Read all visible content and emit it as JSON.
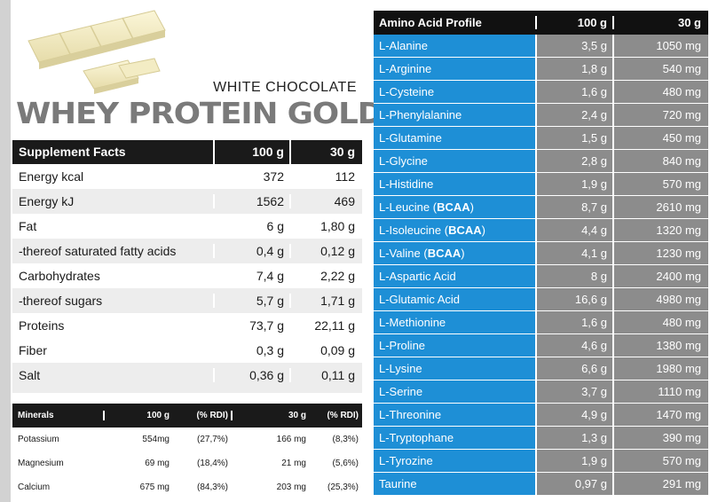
{
  "product": {
    "subtitle": "WHITE CHOCOLATE",
    "title": "WHEY PROTEIN GOLD",
    "image": "white-chocolate-bar"
  },
  "supplement_facts": {
    "headers": [
      "Supplement Facts",
      "100 g",
      "30 g"
    ],
    "rows": [
      {
        "name": "Energy  kcal",
        "per100": "372",
        "per30": "112"
      },
      {
        "name": "Energy  kJ",
        "per100": "1562",
        "per30": "469"
      },
      {
        "name": "Fat",
        "per100": "6 g",
        "per30": "1,80 g"
      },
      {
        "name": "-thereof saturated fatty acids",
        "per100": "0,4 g",
        "per30": "0,12 g"
      },
      {
        "name": "Carbohydrates",
        "per100": "7,4 g",
        "per30": "2,22 g"
      },
      {
        "name": "-thereof sugars",
        "per100": "5,7 g",
        "per30": "1,71 g"
      },
      {
        "name": "Proteins",
        "per100": "73,7 g",
        "per30": "22,11 g"
      },
      {
        "name": "Fiber",
        "per100": "0,3 g",
        "per30": "0,09 g"
      },
      {
        "name": "Salt",
        "per100": "0,36 g",
        "per30": "0,11 g"
      }
    ]
  },
  "minerals": {
    "headers": [
      "Minerals",
      "100 g",
      "(% RDI)",
      "30 g",
      "(% RDI)"
    ],
    "rows": [
      {
        "name": "Potassium",
        "per100": "554mg",
        "rdi100": "(27,7%)",
        "per30": "166 mg",
        "rdi30": "(8,3%)"
      },
      {
        "name": "Magnesium",
        "per100": "69 mg",
        "rdi100": "(18,4%)",
        "per30": "21 mg",
        "rdi30": "(5,6%)"
      },
      {
        "name": "Calcium",
        "per100": "675 mg",
        "rdi100": "(84,3%)",
        "per30": "203 mg",
        "rdi30": "(25,3%)"
      }
    ]
  },
  "amino_acids": {
    "headers": [
      "Amino Acid Profile",
      "100 g",
      "30 g"
    ],
    "bcaa_label": "BCAA",
    "rows": [
      {
        "name": "L-Alanine",
        "bcaa": false,
        "per100": "3,5 g",
        "per30": "1050 mg"
      },
      {
        "name": "L-Arginine",
        "bcaa": false,
        "per100": "1,8 g",
        "per30": "540 mg"
      },
      {
        "name": "L-Cysteine",
        "bcaa": false,
        "per100": "1,6 g",
        "per30": "480 mg"
      },
      {
        "name": "L-Phenylalanine",
        "bcaa": false,
        "per100": "2,4 g",
        "per30": "720 mg"
      },
      {
        "name": "L-Glutamine",
        "bcaa": false,
        "per100": "1,5 g",
        "per30": "450 mg"
      },
      {
        "name": "L-Glycine",
        "bcaa": false,
        "per100": "2,8 g",
        "per30": "840 mg"
      },
      {
        "name": "L-Histidine",
        "bcaa": false,
        "per100": "1,9 g",
        "per30": "570 mg"
      },
      {
        "name": "L-Leucine",
        "bcaa": true,
        "per100": "8,7 g",
        "per30": "2610 mg"
      },
      {
        "name": "L-Isoleucine",
        "bcaa": true,
        "per100": "4,4 g",
        "per30": "1320 mg"
      },
      {
        "name": "L-Valine",
        "bcaa": true,
        "per100": "4,1 g",
        "per30": "1230 mg"
      },
      {
        "name": "L-Aspartic Acid",
        "bcaa": false,
        "per100": "8 g",
        "per30": "2400 mg"
      },
      {
        "name": "L-Glutamic Acid",
        "bcaa": false,
        "per100": "16,6 g",
        "per30": "4980 mg"
      },
      {
        "name": "L-Methionine",
        "bcaa": false,
        "per100": "1,6 g",
        "per30": "480 mg"
      },
      {
        "name": "L-Proline",
        "bcaa": false,
        "per100": "4,6 g",
        "per30": "1380 mg"
      },
      {
        "name": "L-Lysine",
        "bcaa": false,
        "per100": "6,6 g",
        "per30": "1980 mg"
      },
      {
        "name": "L-Serine",
        "bcaa": false,
        "per100": "3,7 g",
        "per30": "1110 mg"
      },
      {
        "name": "L-Threonine",
        "bcaa": false,
        "per100": "4,9 g",
        "per30": "1470 mg"
      },
      {
        "name": "L-Tryptophane",
        "bcaa": false,
        "per100": "1,3 g",
        "per30": "390 mg"
      },
      {
        "name": "L-Tyrozine",
        "bcaa": false,
        "per100": "1,9 g",
        "per30": "570 mg"
      },
      {
        "name": "Taurine",
        "bcaa": false,
        "per100": "0,97 g",
        "per30": "291 mg"
      }
    ]
  },
  "colors": {
    "amino_name_bg": "#1e8fd6",
    "amino_value_bg": "#8c8c8c",
    "header_bg": "#1a1a1a",
    "alt_row_bg": "#ededed",
    "title_color": "#7a7a7a"
  }
}
